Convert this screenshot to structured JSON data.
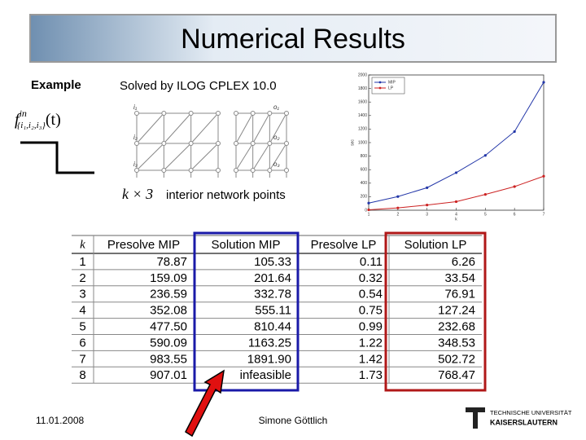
{
  "title": "Numerical Results",
  "example_label": "Example",
  "solver": "Solved by ILOG CPLEX 10.0",
  "formula": {
    "base": "f",
    "sup": "in",
    "sub": "{i₁,i₂,i₃}",
    "arg": "(t)"
  },
  "diagram": {
    "inputs": [
      "i₁",
      "i₂",
      "i₃"
    ],
    "outputs": [
      "o₁",
      "o₂",
      "o₃"
    ],
    "size_label": "k × 3",
    "caption": "interior network points"
  },
  "table": {
    "header": [
      "k",
      "Presolve MIP",
      "Solution MIP",
      "Presolve LP",
      "Solution LP"
    ],
    "rows": [
      [
        "1",
        "78.87",
        "105.33",
        "0.11",
        "6.26"
      ],
      [
        "2",
        "159.09",
        "201.64",
        "0.32",
        "33.54"
      ],
      [
        "3",
        "236.59",
        "332.78",
        "0.54",
        "76.91"
      ],
      [
        "4",
        "352.08",
        "555.11",
        "0.75",
        "127.24"
      ],
      [
        "5",
        "477.50",
        "810.44",
        "0.99",
        "232.68"
      ],
      [
        "6",
        "590.09",
        "1163.25",
        "1.22",
        "348.53"
      ],
      [
        "7",
        "983.55",
        "1891.90",
        "1.42",
        "502.72"
      ],
      [
        "8",
        "907.01",
        "infeasible",
        "1.73",
        "768.47"
      ]
    ]
  },
  "chart_data": {
    "type": "line",
    "x": [
      1,
      2,
      3,
      4,
      5,
      6,
      7
    ],
    "series": [
      {
        "name": "MIP",
        "color": "#2236a8",
        "values": [
          105,
          202,
          333,
          555,
          810,
          1163,
          1892
        ]
      },
      {
        "name": "LP",
        "color": "#cc2222",
        "values": [
          6,
          34,
          77,
          127,
          233,
          349,
          503
        ]
      }
    ],
    "xlim": [
      1,
      7
    ],
    "xticks": [
      1,
      2,
      3,
      4,
      5,
      6,
      7
    ],
    "ylim": [
      0,
      2000
    ],
    "yticks": [
      0,
      200,
      400,
      600,
      800,
      1000,
      1200,
      1400,
      1600,
      1800,
      2000
    ],
    "xlabel": "k",
    "ylabel": "sec",
    "legend": "upper left",
    "grid": false
  },
  "footer": {
    "date": "11.01.2008",
    "author": "Simone Göttlich",
    "logo": [
      "TECHNISCHE UNIVERSITÄT",
      "KAISERSLAUTERN"
    ]
  }
}
